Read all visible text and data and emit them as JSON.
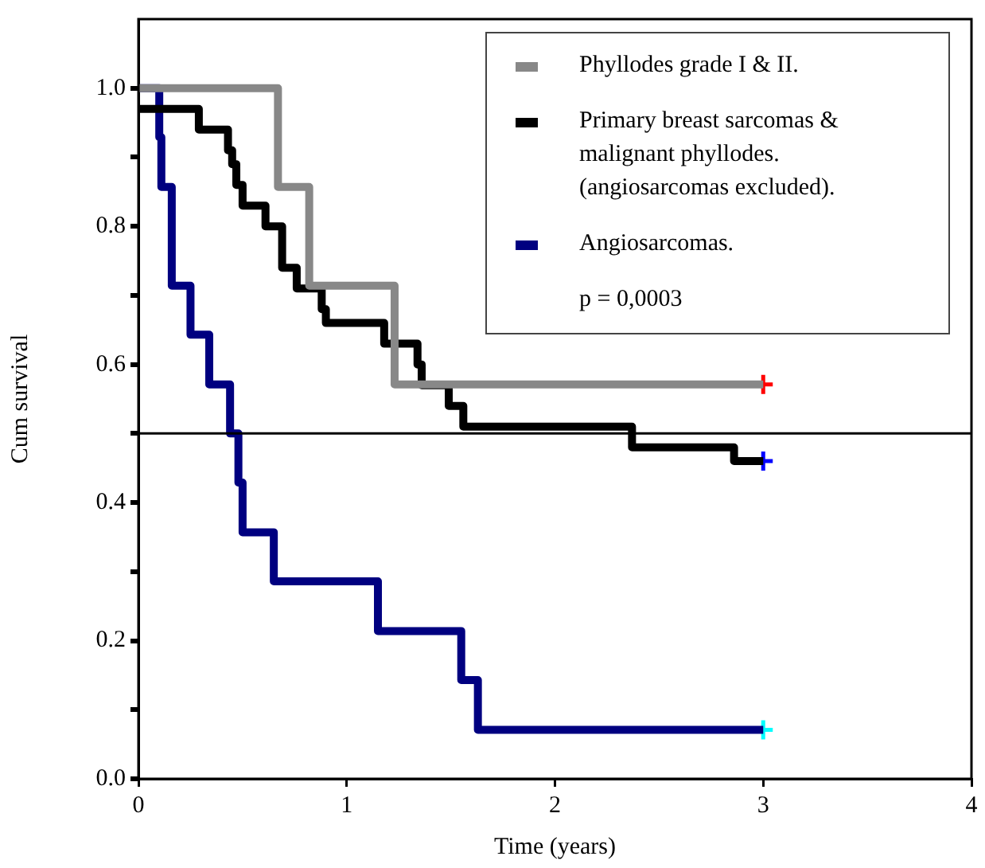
{
  "chart_data": {
    "type": "step",
    "xlabel": "Time (years)",
    "ylabel": "Cum survival",
    "xlim": [
      0,
      4
    ],
    "xticks": [
      0,
      1,
      2,
      3,
      4
    ],
    "ylim": [
      0,
      1.1
    ],
    "yticks": [
      {
        "value": 0,
        "label": "0.0"
      },
      {
        "value": 0.1,
        "label": null
      },
      {
        "value": 0.2,
        "label": "0.2"
      },
      {
        "value": 0.3,
        "label": null
      },
      {
        "value": 0.4,
        "label": "0.4"
      },
      {
        "value": 0.5,
        "label": null
      },
      {
        "value": 0.6,
        "label": "0.6"
      },
      {
        "value": 0.7,
        "label": null
      },
      {
        "value": 0.8,
        "label": "0.8"
      },
      {
        "value": 0.9,
        "label": null
      },
      {
        "value": 1,
        "label": "1.0"
      }
    ],
    "grid": false,
    "legend": "top right",
    "marker": "none",
    "series": [
      {
        "name": "Phyllodes grade I & II.",
        "color": "#888888",
        "x": [
          0,
          0.67,
          0.82,
          1.23,
          3
        ],
        "values": [
          1,
          0.857,
          0.714,
          0.571,
          0.571
        ]
      },
      {
        "name": "Primary breast sarcomas & malignant phyllodes. (angiosarcomas excluded).",
        "color": "#000000",
        "x": [
          0,
          0.29,
          0.43,
          0.45,
          0.47,
          0.5,
          0.61,
          0.69,
          0.76,
          0.88,
          0.9,
          1.18,
          1.34,
          1.36,
          1.49,
          1.56,
          2.37,
          2.86,
          3
        ],
        "values": [
          0.97,
          0.94,
          0.91,
          0.89,
          0.86,
          0.83,
          0.8,
          0.74,
          0.71,
          0.68,
          0.66,
          0.63,
          0.6,
          0.57,
          0.54,
          0.51,
          0.48,
          0.46,
          0.46
        ]
      },
      {
        "name": "Angiosarcomas.",
        "color": "#000080",
        "x": [
          0,
          0.1,
          0.11,
          0.16,
          0.25,
          0.34,
          0.44,
          0.48,
          0.5,
          0.65,
          1.15,
          1.55,
          1.63,
          3
        ],
        "values": [
          1,
          0.929,
          0.857,
          0.714,
          0.643,
          0.571,
          0.5,
          0.429,
          0.357,
          0.286,
          0.214,
          0.143,
          0.071,
          0.071
        ]
      },
      {
        "type": "scatter",
        "marker": "cross",
        "x": [
          3,
          3,
          3
        ],
        "values": [
          0.571,
          0.46,
          0.071
        ],
        "colors": [
          "#ff0000",
          "#0000ff",
          "#00ffff"
        ]
      }
    ],
    "ref_lines": [
      {
        "axis": "y",
        "value": 0.5,
        "color": "#000000"
      }
    ],
    "annotations": [
      "p = 0,0003"
    ]
  }
}
